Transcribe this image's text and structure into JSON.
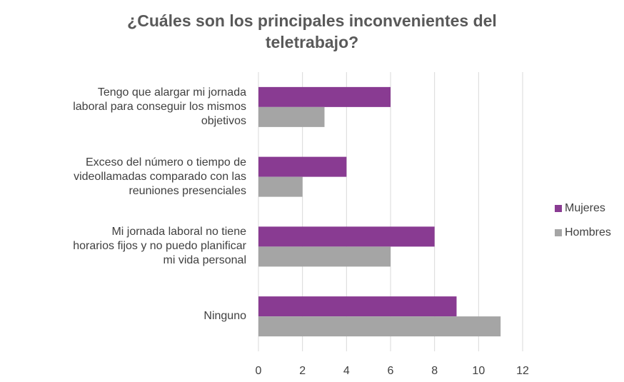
{
  "chart_data": {
    "type": "bar",
    "orientation": "horizontal",
    "title": "¿Cuáles son los principales inconvenientes del teletrabajo?",
    "categories": [
      "Tengo que alargar mi jornada laboral para conseguir los mismos objetivos",
      "Exceso del número o tiempo de videollamadas comparado con las reuniones presenciales",
      "Mi jornada laboral no tiene horarios fijos y no puedo planificar mi vida personal",
      "Ninguno"
    ],
    "series": [
      {
        "name": "Mujeres",
        "color": "#893b92",
        "values": [
          6,
          4,
          8,
          9
        ]
      },
      {
        "name": "Hombres",
        "color": "#a5a5a5",
        "values": [
          3,
          2,
          6,
          11
        ]
      }
    ],
    "xlim": [
      0,
      12
    ],
    "xticks": [
      0,
      2,
      4,
      6,
      8,
      10,
      12
    ],
    "grid": true,
    "legend": "right"
  }
}
